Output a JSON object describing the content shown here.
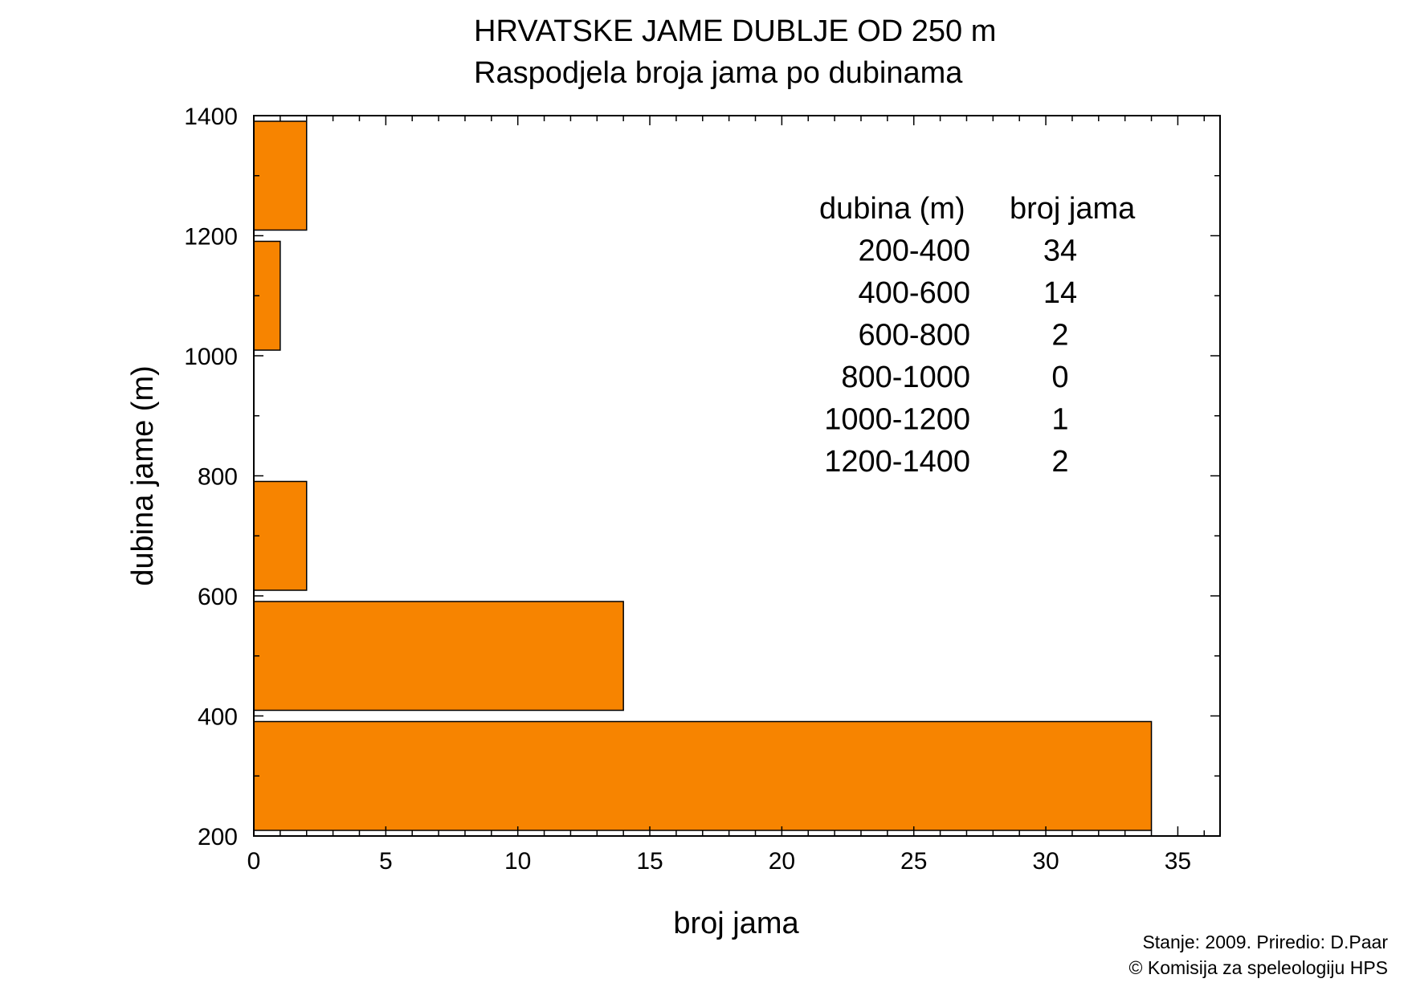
{
  "chart_data": {
    "type": "bar",
    "orientation": "horizontal",
    "title": "HRVATSKE JAME DUBLJE OD 250 m",
    "subtitle": "Raspodjela broja jama po dubinama",
    "xlabel": "broj jama",
    "ylabel": "dubina jame (m)",
    "xlim": [
      0,
      36.6
    ],
    "ylim": [
      200,
      1400
    ],
    "xticks": [
      "0",
      "5",
      "10",
      "15",
      "20",
      "25",
      "30",
      "35"
    ],
    "yticks": [
      "200",
      "400",
      "600",
      "800",
      "1000",
      "1200",
      "1400"
    ],
    "bin_width": 200,
    "bars": [
      {
        "bin_start": 200,
        "bin_end": 400,
        "value": 34
      },
      {
        "bin_start": 400,
        "bin_end": 600,
        "value": 14
      },
      {
        "bin_start": 600,
        "bin_end": 800,
        "value": 2
      },
      {
        "bin_start": 800,
        "bin_end": 1000,
        "value": 0
      },
      {
        "bin_start": 1000,
        "bin_end": 1200,
        "value": 1
      },
      {
        "bin_start": 1200,
        "bin_end": 1400,
        "value": 2
      }
    ],
    "bar_color": "#f78400",
    "grid": false,
    "table": {
      "headers": [
        "dubina (m)",
        "broj jama"
      ],
      "rows": [
        [
          "200-400",
          "34"
        ],
        [
          "400-600",
          "14"
        ],
        [
          "600-800",
          "2"
        ],
        [
          "800-1000",
          "0"
        ],
        [
          "1000-1200",
          "1"
        ],
        [
          "1200-1400",
          "2"
        ]
      ]
    }
  },
  "credits": {
    "line1": "Stanje: 2009.  Priredio: D.Paar",
    "line2": "© Komisija za speleologiju HPS"
  }
}
